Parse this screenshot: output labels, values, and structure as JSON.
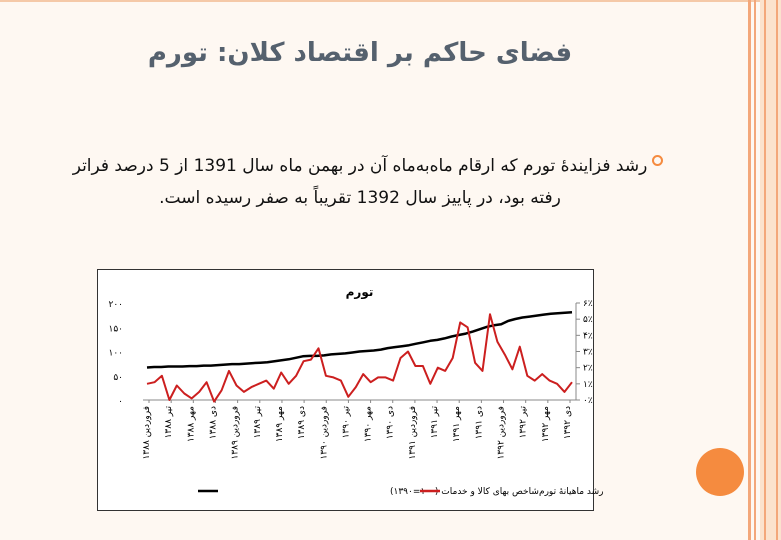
{
  "slide": {
    "title": "فضای حاکم بر اقتصاد کلان: تورم",
    "bullet": "رشد فزایندۀ تورم که ارقام ماه‌به‌ماه آن در بهمن ماه سال 1391 از 5 درصد فراتر رفته بود، در پاییز سال 1392 تقریباً به صفر رسیده است.",
    "colors": {
      "accent": "#f58b3f",
      "title": "#55616e",
      "rail": "#f3a77a"
    }
  },
  "chart_data": {
    "type": "line",
    "title": "تورم",
    "x_ticks": [
      "فروردین ۱۳۸۸",
      "تیر ۱۳۸۸",
      "مهر ۱۳۸۸",
      "دی ۱۳۸۸",
      "فروردین ۱۳۸۹",
      "تیر ۱۳۸۹",
      "مهر ۱۳۸۹",
      "دی ۱۳۸۹",
      "فروردین ۱۳۹۰",
      "تیر ۱۳۹۰",
      "مهر ۱۳۹۰",
      "دی ۱۳۹۰",
      "فروردین ۱۳۹۱",
      "تیر ۱۳۹۱",
      "مهر ۱۳۹۱",
      "دی ۱۳۹۱",
      "فروردین ۱۳۹۲",
      "تیر ۱۳۹۲",
      "مهر ۱۳۹۲",
      "دی ۱۳۹۲"
    ],
    "y_left_ticks": [
      "۰",
      "۵۰",
      "۱۰۰",
      "۱۵۰",
      "۲۰۰"
    ],
    "y_left_range": [
      0,
      200
    ],
    "y_right_ticks": [
      "۰٪",
      "۱٪",
      "۲٪",
      "۳٪",
      "۴٪",
      "۵٪",
      "۶٪"
    ],
    "y_right_range": [
      0,
      6
    ],
    "grid": false,
    "legend_position": "bottom",
    "series": [
      {
        "name": "شاخص بهای کالا و خدمات (۱۰۰=۱۳۹۰)",
        "axis": "left",
        "color": "#000000",
        "values": [
          67,
          68,
          68,
          69,
          69,
          69,
          70,
          70,
          71,
          71,
          72,
          73,
          74,
          74,
          75,
          76,
          77,
          78,
          80,
          82,
          84,
          87,
          90,
          91,
          91,
          92,
          94,
          95,
          96,
          98,
          100,
          101,
          102,
          104,
          107,
          109,
          111,
          113,
          116,
          119,
          122,
          124,
          127,
          131,
          134,
          137,
          141,
          146,
          151,
          154,
          156,
          163,
          167,
          170,
          172,
          174,
          176,
          178,
          179,
          180,
          181
        ]
      },
      {
        "name": "رشد ماهیانۀ تورم",
        "axis": "right",
        "color": "#cc1f1f",
        "values": [
          1.0,
          1.1,
          1.5,
          0.0,
          0.9,
          0.4,
          0.1,
          0.5,
          1.1,
          -0.1,
          0.6,
          1.8,
          0.9,
          0.5,
          0.8,
          1.0,
          1.2,
          0.7,
          1.7,
          1.0,
          1.5,
          2.4,
          2.5,
          3.2,
          1.5,
          1.4,
          1.2,
          0.2,
          0.8,
          1.6,
          1.1,
          1.4,
          1.4,
          1.2,
          2.6,
          3.0,
          2.1,
          2.1,
          1.0,
          2.0,
          1.8,
          2.6,
          4.8,
          4.5,
          2.3,
          1.8,
          5.3,
          3.6,
          2.8,
          1.9,
          3.3,
          1.5,
          1.2,
          1.6,
          1.2,
          1.0,
          0.5,
          1.1
        ]
      }
    ]
  }
}
